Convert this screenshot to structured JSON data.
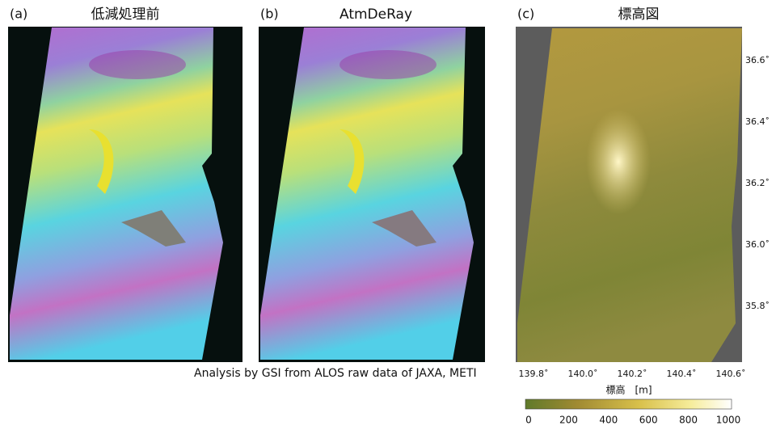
{
  "panels": [
    {
      "label": "(a)",
      "title": "低減処理前"
    },
    {
      "label": "(b)",
      "title": "AtmDeRay"
    },
    {
      "label": "(c)",
      "title": "標高図"
    }
  ],
  "credit": "Analysis by GSI from ALOS raw data of JAXA, METI",
  "latitude_labels": [
    "36.6˚",
    "36.4˚",
    "36.2˚",
    "36.0˚",
    "35.8˚"
  ],
  "longitude_labels": [
    "139.8˚",
    "140.0˚",
    "140.2˚",
    "140.4˚",
    "140.6˚"
  ],
  "colorbar": {
    "title": "標高　[m]",
    "ticks": [
      "0",
      "200",
      "400",
      "600",
      "800",
      "1000"
    ]
  }
}
